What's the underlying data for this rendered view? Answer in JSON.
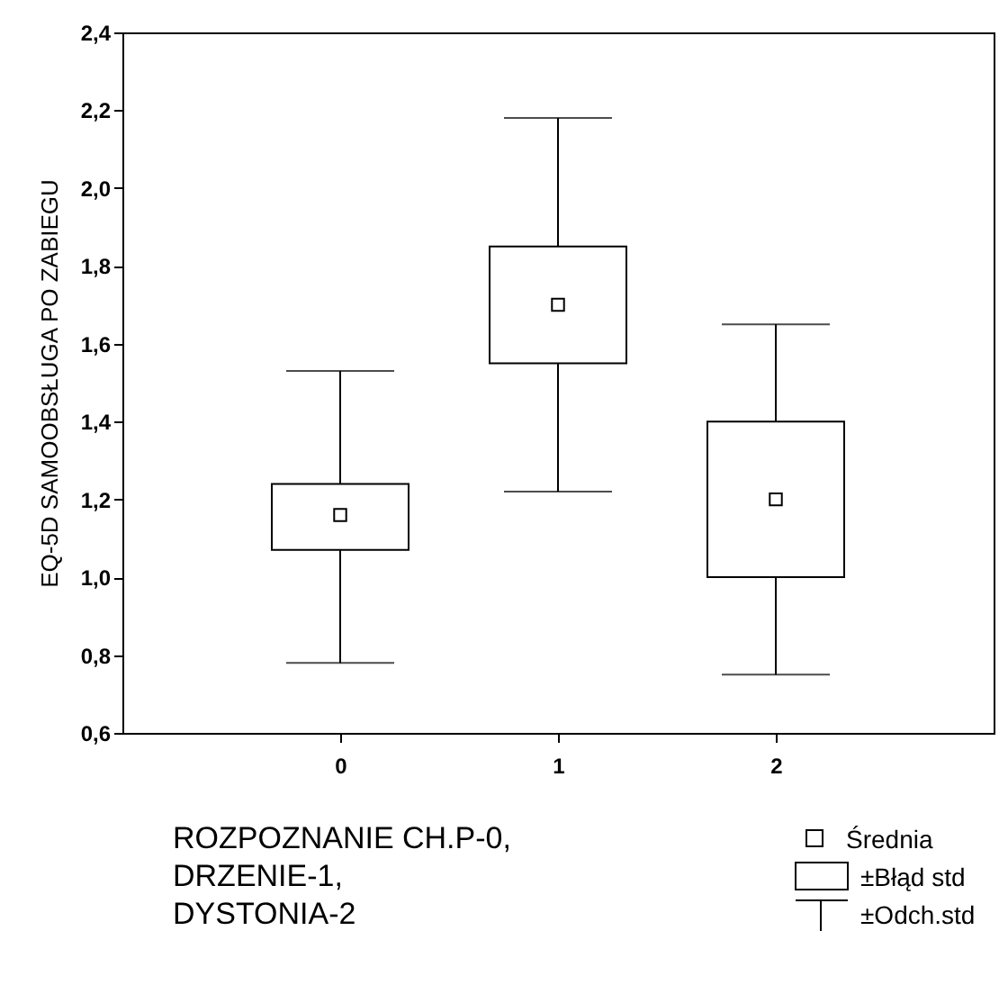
{
  "chart_data": {
    "type": "box",
    "ylabel": "EQ-5D SAMOOBSŁUGA PO ZABIEGU",
    "xlabel": "ROZPOZNANIE CH.P-0, DRZENIE-1, DYSTONIA-2",
    "categories": [
      "0",
      "1",
      "2"
    ],
    "boxes": [
      {
        "low": 0.78,
        "q1": 1.07,
        "median": 1.16,
        "q3": 1.24,
        "high": 1.53
      },
      {
        "low": 1.22,
        "q1": 1.55,
        "median": 1.7,
        "q3": 1.85,
        "high": 2.18
      },
      {
        "low": 0.75,
        "q1": 1.0,
        "median": 1.2,
        "q3": 1.4,
        "high": 1.65
      }
    ],
    "ylim": [
      0.6,
      2.4
    ],
    "yticks": [
      {
        "value": 0.6,
        "label": "0,6"
      },
      {
        "value": 0.8,
        "label": "0,8"
      },
      {
        "value": 1.0,
        "label": "1,0"
      },
      {
        "value": 1.2,
        "label": "1,2"
      },
      {
        "value": 1.4,
        "label": "1,4"
      },
      {
        "value": 1.6,
        "label": "1,6"
      },
      {
        "value": 1.8,
        "label": "1,8"
      },
      {
        "value": 2.0,
        "label": "2,0"
      },
      {
        "value": 2.2,
        "label": "2,2"
      },
      {
        "value": 2.4,
        "label": "2,4"
      }
    ],
    "marker": "square",
    "grid": false,
    "annotations": [
      "Średnia",
      "±Błąd std",
      "±Odch.std"
    ]
  }
}
